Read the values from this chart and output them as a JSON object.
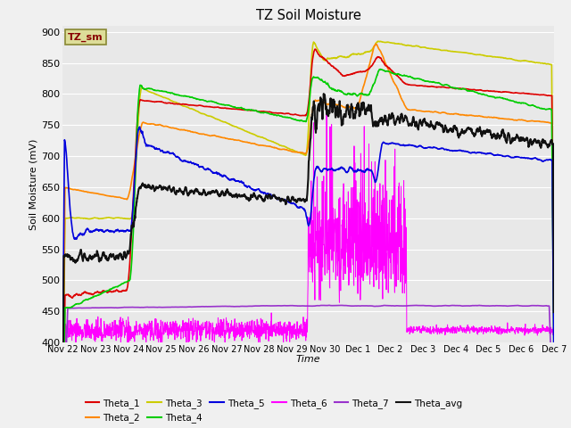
{
  "title": "TZ Soil Moisture",
  "ylabel": "Soil Moisture (mV)",
  "xlabel": "Time",
  "ylim": [
    400,
    910
  ],
  "yticks": [
    400,
    450,
    500,
    550,
    600,
    650,
    700,
    750,
    800,
    850,
    900
  ],
  "bg_color": "#e8e8e8",
  "fig_color": "#f0f0f0",
  "series_colors": {
    "Theta_1": "#dd0000",
    "Theta_2": "#ff8800",
    "Theta_3": "#cccc00",
    "Theta_4": "#00cc00",
    "Theta_5": "#0000dd",
    "Theta_6": "#ff00ff",
    "Theta_7": "#9933cc",
    "Theta_avg": "#111111"
  },
  "xtick_labels": [
    "Nov 22",
    "Nov 23",
    "Nov 24",
    "Nov 25",
    "Nov 26",
    "Nov 27",
    "Nov 28",
    "Nov 29",
    "Nov 30",
    "Dec 1",
    "Dec 2",
    "Dec 3",
    "Dec 4",
    "Dec 5",
    "Dec 6",
    "Dec 7"
  ],
  "legend_box_text": "TZ_sm",
  "grid_color": "#ffffff",
  "lw": 1.2
}
